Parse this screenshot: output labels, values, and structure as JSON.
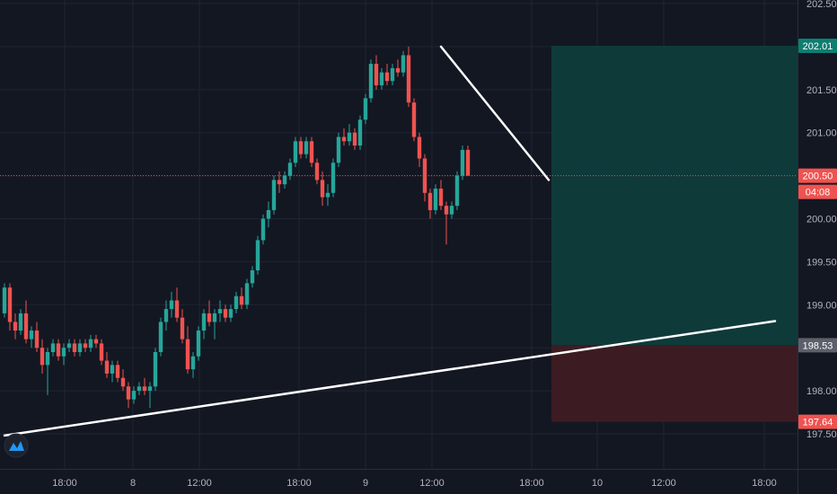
{
  "colors": {
    "background": "#131722",
    "grid": "#1f2433",
    "up": "#26a69a",
    "down": "#ef5350",
    "target_zone": "#0f3a3a",
    "stop_zone": "#3c1c22",
    "trendline": "#ffffff",
    "axis_text": "#b2b5be"
  },
  "logo": {
    "icon": "tradingview-logo-icon"
  },
  "chart_data": {
    "type": "candlestick",
    "title": "",
    "xlabel": "",
    "ylabel": "",
    "ylim": [
      197.1,
      202.65
    ],
    "grid": true,
    "x_ticks": [
      "18:00",
      "8",
      "12:00",
      "18:00",
      "9",
      "12:00",
      "18:00",
      "10",
      "12:00",
      "18:00"
    ],
    "y_ticks": [
      "197.50",
      "198.00",
      "198.50",
      "199.00",
      "199.50",
      "200.00",
      "200.50",
      "201.00",
      "201.50",
      "202.00",
      "202.50"
    ],
    "price_tags": [
      {
        "label": "202.01",
        "value": 202.01,
        "kind": "target"
      },
      {
        "label": "200.50",
        "value": 200.5,
        "kind": "current"
      },
      {
        "label": "04:08",
        "value": 200.35,
        "kind": "countdown"
      },
      {
        "label": "198.53",
        "value": 198.53,
        "kind": "entry"
      },
      {
        "label": "197.64",
        "value": 197.64,
        "kind": "stop"
      }
    ],
    "current_price": 200.5,
    "position": {
      "entry": 198.53,
      "target": 202.01,
      "stop": 197.64
    },
    "trendlines": [
      {
        "from": [
          0,
          197.48
        ],
        "to": [
          143,
          198.81
        ]
      },
      {
        "from": [
          81,
          202.0
        ],
        "to": [
          101,
          200.45
        ]
      }
    ],
    "candles": [
      [
        198.9,
        199.25,
        198.85,
        199.2
      ],
      [
        199.2,
        199.25,
        198.7,
        198.8
      ],
      [
        198.8,
        198.9,
        198.6,
        198.7
      ],
      [
        198.7,
        198.95,
        198.65,
        198.9
      ],
      [
        198.9,
        199.05,
        198.55,
        198.6
      ],
      [
        198.6,
        198.75,
        198.5,
        198.7
      ],
      [
        198.7,
        198.8,
        198.45,
        198.5
      ],
      [
        198.5,
        198.6,
        198.2,
        198.3
      ],
      [
        198.3,
        198.5,
        197.95,
        198.45
      ],
      [
        198.45,
        198.6,
        198.4,
        198.55
      ],
      [
        198.55,
        198.6,
        198.35,
        198.4
      ],
      [
        198.4,
        198.55,
        198.3,
        198.5
      ],
      [
        198.5,
        198.6,
        198.45,
        198.55
      ],
      [
        198.55,
        198.6,
        198.4,
        198.45
      ],
      [
        198.45,
        198.6,
        198.4,
        198.55
      ],
      [
        198.55,
        198.6,
        198.45,
        198.5
      ],
      [
        198.5,
        198.65,
        198.45,
        198.6
      ],
      [
        198.6,
        198.65,
        198.5,
        198.55
      ],
      [
        198.55,
        198.6,
        198.3,
        198.35
      ],
      [
        198.35,
        198.45,
        198.15,
        198.2
      ],
      [
        198.2,
        198.35,
        198.1,
        198.3
      ],
      [
        198.3,
        198.35,
        198.1,
        198.15
      ],
      [
        198.15,
        198.25,
        198.0,
        198.05
      ],
      [
        198.05,
        198.1,
        197.8,
        197.9
      ],
      [
        197.9,
        198.05,
        197.85,
        198.0
      ],
      [
        198.0,
        198.1,
        197.95,
        198.05
      ],
      [
        198.05,
        198.15,
        197.95,
        198.0
      ],
      [
        198.0,
        198.1,
        197.8,
        198.05
      ],
      [
        198.05,
        198.5,
        198.0,
        198.45
      ],
      [
        198.45,
        198.85,
        198.4,
        198.8
      ],
      [
        198.8,
        199.05,
        198.7,
        198.95
      ],
      [
        198.95,
        199.15,
        198.85,
        199.05
      ],
      [
        199.05,
        199.2,
        198.8,
        198.85
      ],
      [
        198.85,
        198.95,
        198.55,
        198.6
      ],
      [
        198.6,
        198.75,
        198.2,
        198.25
      ],
      [
        198.25,
        198.45,
        198.15,
        198.4
      ],
      [
        198.4,
        198.75,
        198.35,
        198.7
      ],
      [
        198.7,
        198.95,
        198.6,
        198.9
      ],
      [
        198.9,
        199.05,
        198.75,
        198.8
      ],
      [
        198.8,
        198.95,
        198.6,
        198.9
      ],
      [
        198.9,
        199.05,
        198.8,
        198.95
      ],
      [
        198.95,
        199.0,
        198.8,
        198.85
      ],
      [
        198.85,
        199.0,
        198.8,
        198.95
      ],
      [
        198.95,
        199.15,
        198.9,
        199.1
      ],
      [
        199.1,
        199.2,
        198.95,
        199.0
      ],
      [
        199.0,
        199.3,
        198.95,
        199.25
      ],
      [
        199.25,
        199.45,
        199.2,
        199.4
      ],
      [
        199.4,
        199.8,
        199.35,
        199.75
      ],
      [
        199.75,
        200.05,
        199.7,
        200.0
      ],
      [
        200.0,
        200.2,
        199.9,
        200.1
      ],
      [
        200.1,
        200.5,
        200.05,
        200.45
      ],
      [
        200.45,
        200.55,
        200.3,
        200.4
      ],
      [
        200.4,
        200.55,
        200.35,
        200.5
      ],
      [
        200.5,
        200.7,
        200.45,
        200.65
      ],
      [
        200.65,
        200.95,
        200.6,
        200.9
      ],
      [
        200.9,
        200.95,
        200.7,
        200.75
      ],
      [
        200.75,
        200.95,
        200.7,
        200.9
      ],
      [
        200.9,
        200.95,
        200.6,
        200.65
      ],
      [
        200.65,
        200.7,
        200.4,
        200.45
      ],
      [
        200.45,
        200.55,
        200.15,
        200.25
      ],
      [
        200.25,
        200.4,
        200.15,
        200.3
      ],
      [
        200.3,
        200.7,
        200.25,
        200.65
      ],
      [
        200.65,
        201.0,
        200.6,
        200.95
      ],
      [
        200.95,
        201.05,
        200.85,
        200.9
      ],
      [
        200.9,
        201.1,
        200.85,
        201.0
      ],
      [
        201.0,
        201.05,
        200.8,
        200.85
      ],
      [
        200.85,
        201.2,
        200.8,
        201.15
      ],
      [
        201.15,
        201.45,
        201.1,
        201.4
      ],
      [
        201.4,
        201.85,
        201.35,
        201.8
      ],
      [
        201.8,
        201.9,
        201.5,
        201.55
      ],
      [
        201.55,
        201.75,
        201.5,
        201.7
      ],
      [
        201.7,
        201.8,
        201.55,
        201.6
      ],
      [
        201.6,
        201.8,
        201.55,
        201.75
      ],
      [
        201.75,
        201.85,
        201.65,
        201.7
      ],
      [
        201.7,
        201.95,
        201.65,
        201.9
      ],
      [
        201.9,
        202.0,
        201.3,
        201.35
      ],
      [
        201.35,
        201.4,
        200.9,
        200.95
      ],
      [
        200.95,
        201.0,
        200.6,
        200.7
      ],
      [
        200.7,
        200.75,
        200.2,
        200.3
      ],
      [
        200.3,
        200.35,
        200.0,
        200.1
      ],
      [
        200.1,
        200.4,
        200.05,
        200.35
      ],
      [
        200.35,
        200.45,
        200.1,
        200.15
      ],
      [
        200.15,
        200.2,
        199.7,
        200.05
      ],
      [
        200.05,
        200.2,
        200.0,
        200.15
      ],
      [
        200.15,
        200.55,
        200.1,
        200.5
      ],
      [
        200.5,
        200.85,
        200.45,
        200.8
      ],
      [
        200.8,
        200.85,
        200.5,
        200.5
      ]
    ]
  }
}
